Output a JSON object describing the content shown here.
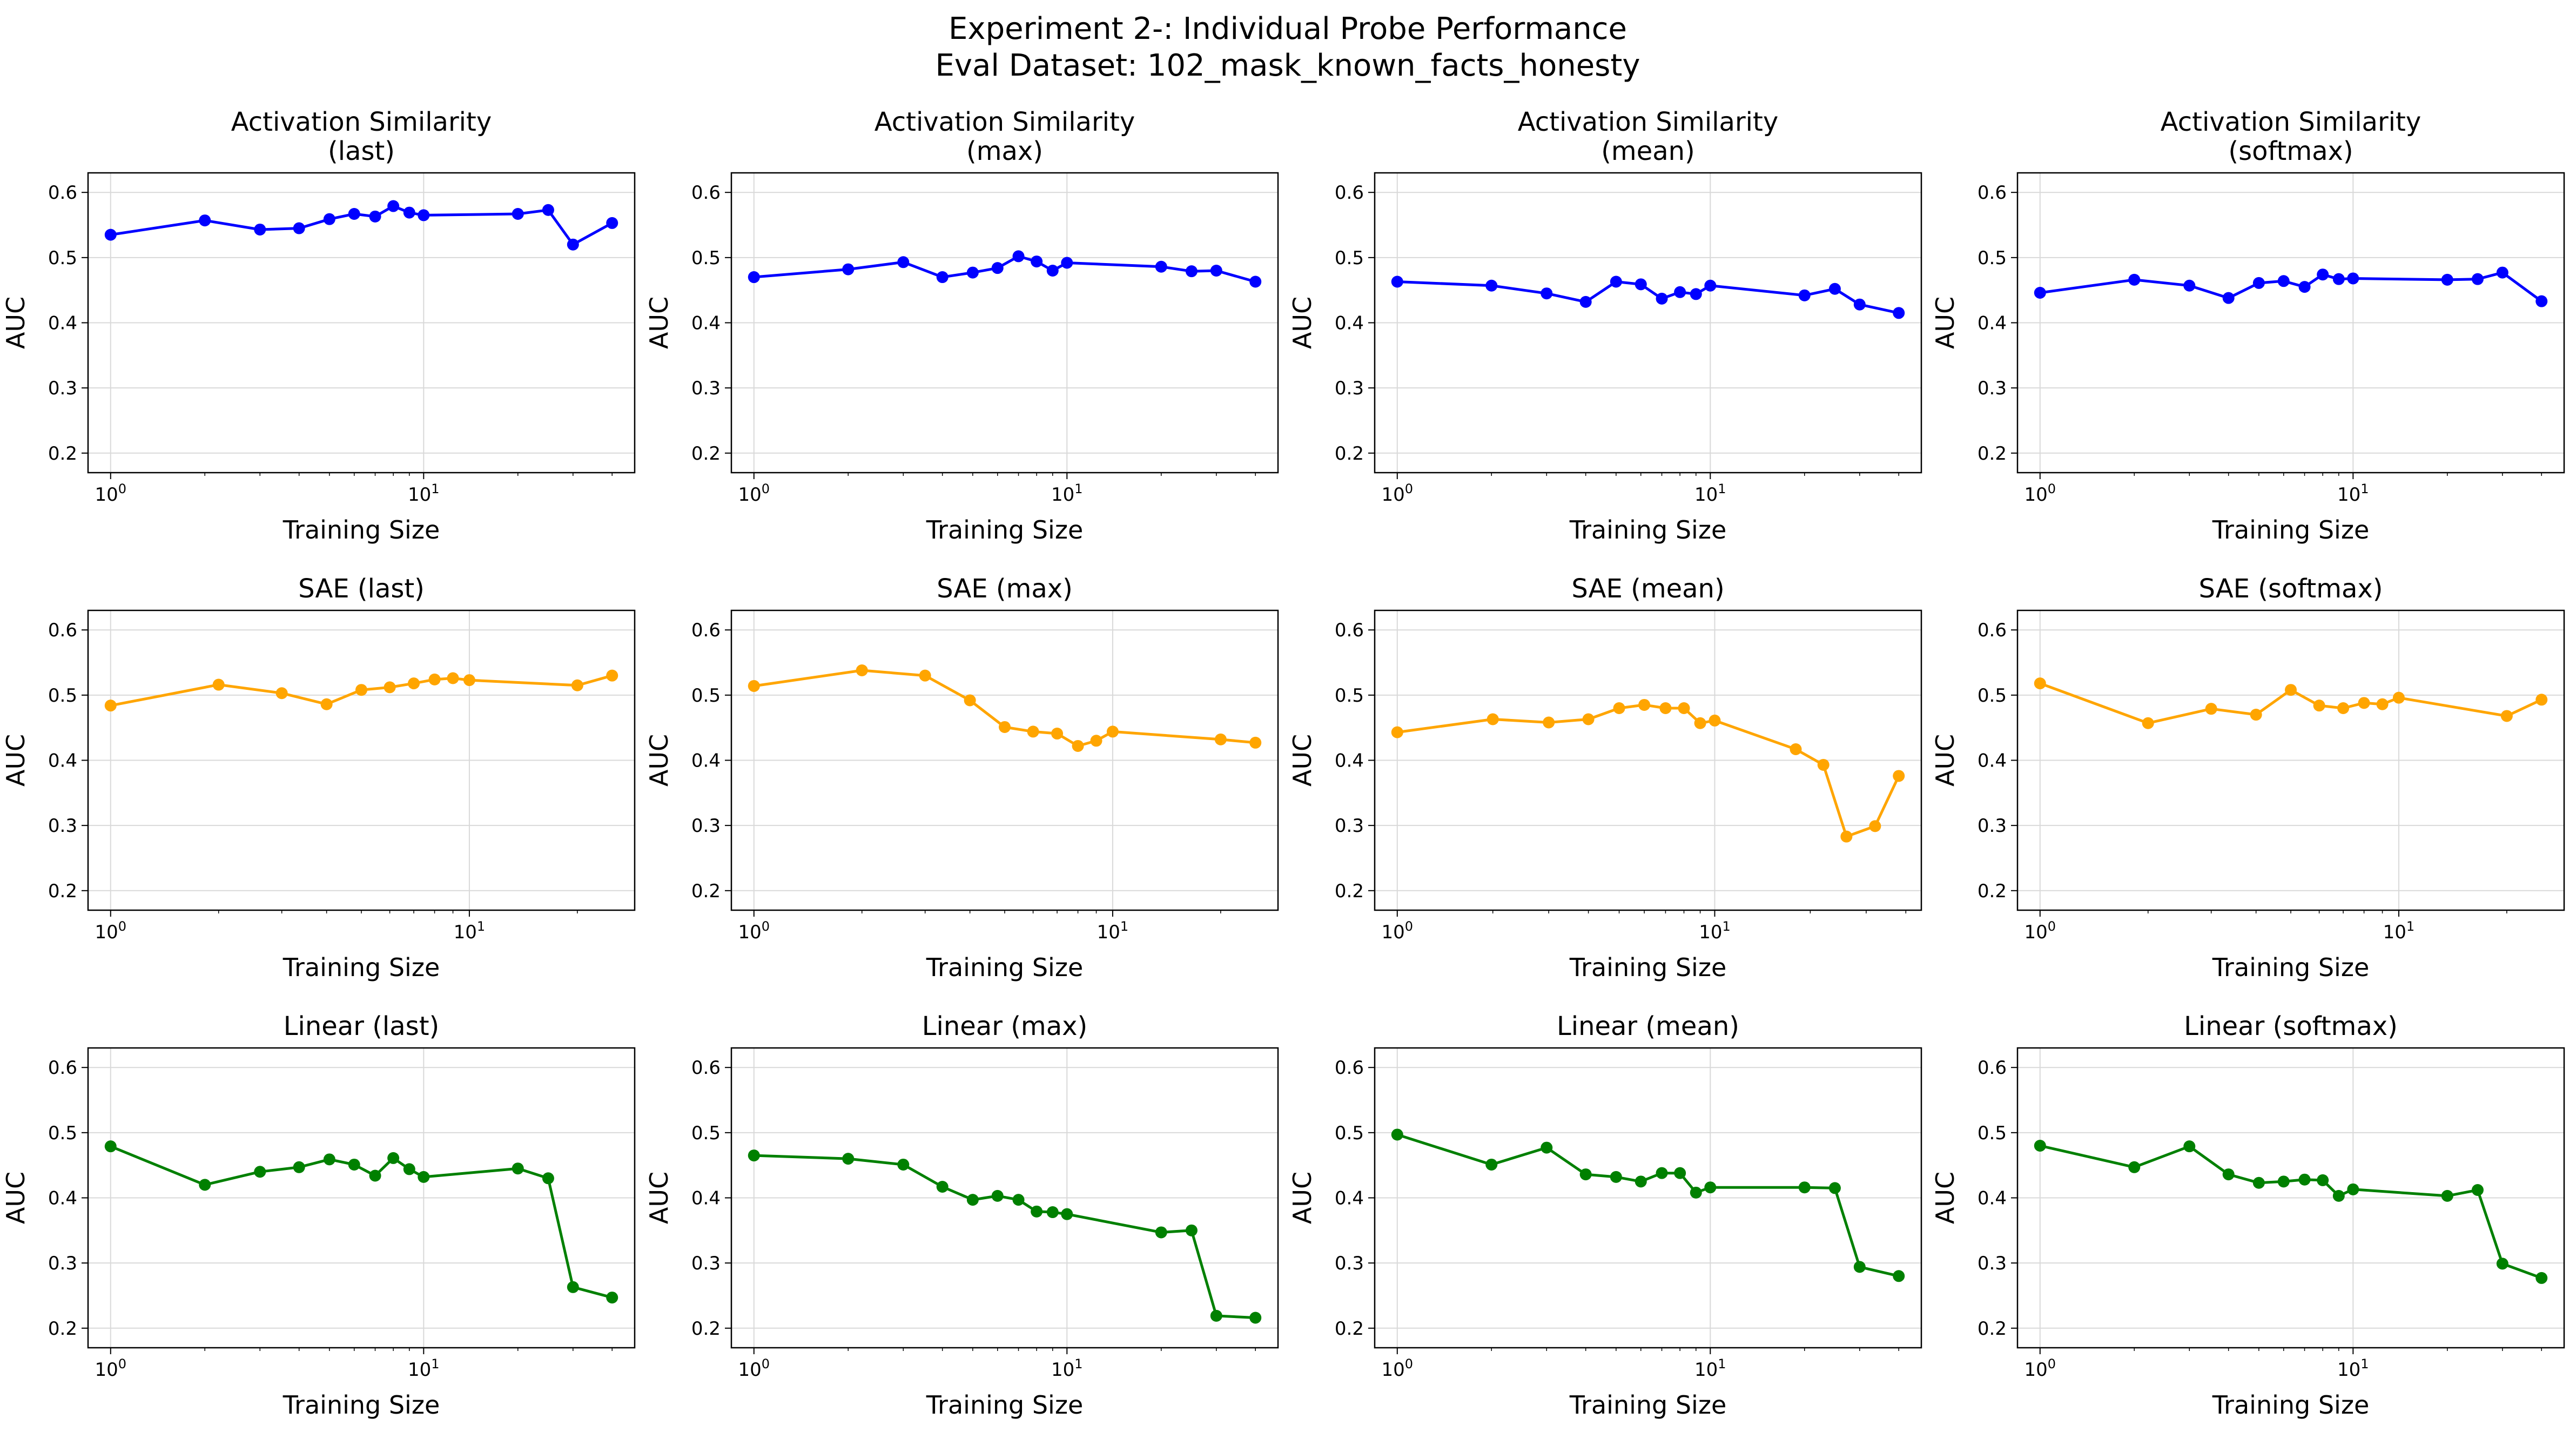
{
  "figure": {
    "title_line1": "Experiment 2-: Individual Probe Performance",
    "title_line2": "Eval Dataset: 102_mask_known_facts_honesty"
  },
  "chart_data": [
    {
      "type": "line",
      "title_line1": "Activation Similarity",
      "title_line2": "(last)",
      "xlabel": "Training Size",
      "ylabel": "AUC",
      "xscale": "log",
      "ylim": [
        0.17,
        0.63
      ],
      "grid": true,
      "color": "#0000ff",
      "series": [
        {
          "x": [
            1,
            2,
            3,
            4,
            5,
            6,
            7,
            8,
            9,
            10,
            20,
            25,
            30,
            40
          ],
          "y": [
            0.535,
            0.557,
            0.543,
            0.545,
            0.559,
            0.567,
            0.563,
            0.579,
            0.569,
            0.565,
            0.567,
            0.573,
            0.52,
            0.553
          ]
        }
      ]
    },
    {
      "type": "line",
      "title_line1": "Activation Similarity",
      "title_line2": "(max)",
      "xlabel": "Training Size",
      "ylabel": "AUC",
      "xscale": "log",
      "ylim": [
        0.17,
        0.63
      ],
      "grid": true,
      "color": "#0000ff",
      "series": [
        {
          "x": [
            1,
            2,
            3,
            4,
            5,
            6,
            7,
            8,
            9,
            10,
            20,
            25,
            30,
            40
          ],
          "y": [
            0.47,
            0.482,
            0.493,
            0.47,
            0.477,
            0.484,
            0.502,
            0.494,
            0.48,
            0.492,
            0.486,
            0.479,
            0.48,
            0.463
          ]
        }
      ]
    },
    {
      "type": "line",
      "title_line1": "Activation Similarity",
      "title_line2": "(mean)",
      "xlabel": "Training Size",
      "ylabel": "AUC",
      "xscale": "log",
      "ylim": [
        0.17,
        0.63
      ],
      "grid": true,
      "color": "#0000ff",
      "series": [
        {
          "x": [
            1,
            2,
            3,
            4,
            5,
            6,
            7,
            8,
            9,
            10,
            20,
            25,
            30,
            40
          ],
          "y": [
            0.463,
            0.457,
            0.445,
            0.432,
            0.463,
            0.459,
            0.437,
            0.447,
            0.444,
            0.457,
            0.442,
            0.452,
            0.428,
            0.415
          ]
        }
      ]
    },
    {
      "type": "line",
      "title_line1": "Activation Similarity",
      "title_line2": "(softmax)",
      "xlabel": "Training Size",
      "ylabel": "AUC",
      "xscale": "log",
      "ylim": [
        0.17,
        0.63
      ],
      "grid": true,
      "color": "#0000ff",
      "series": [
        {
          "x": [
            1,
            2,
            3,
            4,
            5,
            6,
            7,
            8,
            9,
            10,
            20,
            25,
            30,
            40
          ],
          "y": [
            0.446,
            0.466,
            0.457,
            0.438,
            0.461,
            0.464,
            0.455,
            0.474,
            0.467,
            0.468,
            0.466,
            0.467,
            0.477,
            0.433
          ]
        }
      ]
    },
    {
      "type": "line",
      "title_line1": "SAE (last)",
      "title_line2": "",
      "xlabel": "Training Size",
      "ylabel": "AUC",
      "xscale": "log",
      "ylim": [
        0.17,
        0.63
      ],
      "grid": true,
      "color": "#ffa500",
      "series": [
        {
          "x": [
            1,
            2,
            3,
            4,
            5,
            6,
            7,
            8,
            9,
            10,
            20,
            25
          ],
          "y": [
            0.484,
            0.516,
            0.503,
            0.486,
            0.508,
            0.512,
            0.518,
            0.524,
            0.526,
            0.523,
            0.515,
            0.53
          ]
        }
      ]
    },
    {
      "type": "line",
      "title_line1": "SAE (max)",
      "title_line2": "",
      "xlabel": "Training Size",
      "ylabel": "AUC",
      "xscale": "log",
      "ylim": [
        0.17,
        0.63
      ],
      "grid": true,
      "color": "#ffa500",
      "series": [
        {
          "x": [
            1,
            2,
            3,
            4,
            5,
            6,
            7,
            8,
            9,
            10,
            20,
            25
          ],
          "y": [
            0.514,
            0.538,
            0.53,
            0.492,
            0.451,
            0.444,
            0.441,
            0.422,
            0.43,
            0.444,
            0.432,
            0.427
          ]
        }
      ]
    },
    {
      "type": "line",
      "title_line1": "SAE (mean)",
      "title_line2": "",
      "xlabel": "Training Size",
      "ylabel": "AUC",
      "xscale": "log",
      "ylim": [
        0.17,
        0.63
      ],
      "grid": true,
      "color": "#ffa500",
      "series": [
        {
          "x": [
            1,
            2,
            3,
            4,
            5,
            6,
            7,
            8,
            9,
            10,
            18,
            22,
            26,
            32,
            38
          ],
          "y": [
            0.443,
            0.463,
            0.458,
            0.463,
            0.48,
            0.485,
            0.48,
            0.48,
            0.457,
            0.461,
            0.417,
            0.393,
            0.283,
            0.299,
            0.376
          ]
        }
      ]
    },
    {
      "type": "line",
      "title_line1": "SAE (softmax)",
      "title_line2": "",
      "xlabel": "Training Size",
      "ylabel": "AUC",
      "xscale": "log",
      "ylim": [
        0.17,
        0.63
      ],
      "grid": true,
      "color": "#ffa500",
      "series": [
        {
          "x": [
            1,
            2,
            3,
            4,
            5,
            6,
            7,
            8,
            9,
            10,
            20,
            25
          ],
          "y": [
            0.518,
            0.457,
            0.479,
            0.47,
            0.508,
            0.484,
            0.48,
            0.488,
            0.486,
            0.496,
            0.468,
            0.493
          ]
        }
      ]
    },
    {
      "type": "line",
      "title_line1": "Linear (last)",
      "title_line2": "",
      "xlabel": "Training Size",
      "ylabel": "AUC",
      "xscale": "log",
      "ylim": [
        0.17,
        0.63
      ],
      "grid": true,
      "color": "#008000",
      "series": [
        {
          "x": [
            1,
            2,
            3,
            4,
            5,
            6,
            7,
            8,
            9,
            10,
            20,
            25,
            30,
            40
          ],
          "y": [
            0.479,
            0.42,
            0.44,
            0.447,
            0.459,
            0.451,
            0.434,
            0.461,
            0.444,
            0.432,
            0.445,
            0.43,
            0.263,
            0.247
          ]
        }
      ]
    },
    {
      "type": "line",
      "title_line1": "Linear (max)",
      "title_line2": "",
      "xlabel": "Training Size",
      "ylabel": "AUC",
      "xscale": "log",
      "ylim": [
        0.17,
        0.63
      ],
      "grid": true,
      "color": "#008000",
      "series": [
        {
          "x": [
            1,
            2,
            3,
            4,
            5,
            6,
            7,
            8,
            9,
            10,
            20,
            25,
            30,
            40
          ],
          "y": [
            0.465,
            0.46,
            0.451,
            0.417,
            0.397,
            0.403,
            0.397,
            0.379,
            0.378,
            0.375,
            0.347,
            0.35,
            0.219,
            0.216
          ]
        }
      ]
    },
    {
      "type": "line",
      "title_line1": "Linear (mean)",
      "title_line2": "",
      "xlabel": "Training Size",
      "ylabel": "AUC",
      "xscale": "log",
      "ylim": [
        0.17,
        0.63
      ],
      "grid": true,
      "color": "#008000",
      "series": [
        {
          "x": [
            1,
            2,
            3,
            4,
            5,
            6,
            7,
            8,
            9,
            10,
            20,
            25,
            30,
            40
          ],
          "y": [
            0.497,
            0.451,
            0.477,
            0.436,
            0.432,
            0.425,
            0.438,
            0.438,
            0.408,
            0.416,
            0.416,
            0.415,
            0.294,
            0.28
          ]
        }
      ]
    },
    {
      "type": "line",
      "title_line1": "Linear (softmax)",
      "title_line2": "",
      "xlabel": "Training Size",
      "ylabel": "AUC",
      "xscale": "log",
      "ylim": [
        0.17,
        0.63
      ],
      "grid": true,
      "color": "#008000",
      "series": [
        {
          "x": [
            1,
            2,
            3,
            4,
            5,
            6,
            7,
            8,
            9,
            10,
            20,
            25,
            30,
            40
          ],
          "y": [
            0.48,
            0.447,
            0.479,
            0.436,
            0.423,
            0.425,
            0.428,
            0.427,
            0.403,
            0.413,
            0.403,
            0.412,
            0.299,
            0.277
          ]
        }
      ]
    }
  ]
}
